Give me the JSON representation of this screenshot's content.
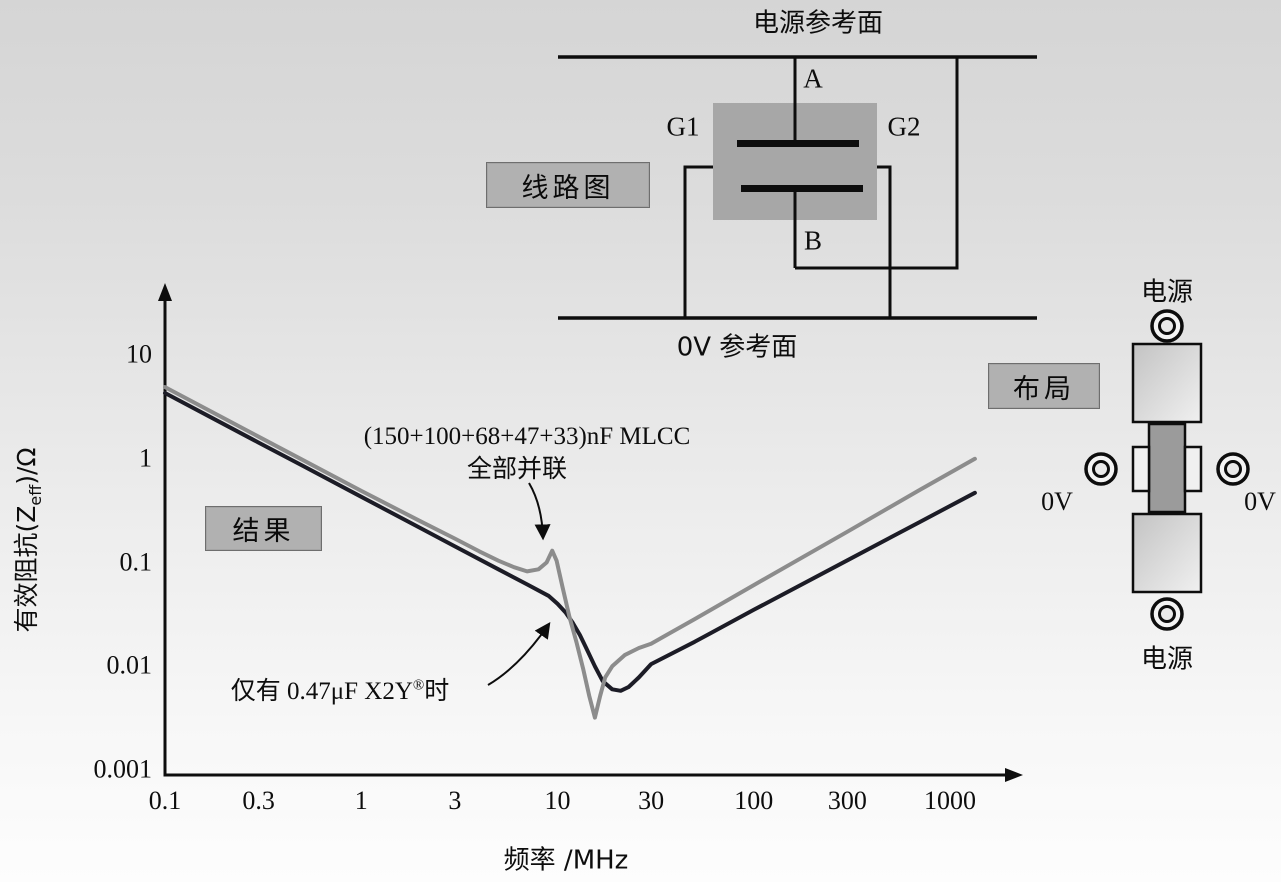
{
  "palette": {
    "line_color": "#0d0d0d",
    "box_fill": "#b1b1b1",
    "box_border": "#6e6e6e",
    "capacitor_body_fill": "#a7a7a7",
    "component_body_fill": "#9b9b9b",
    "curve_mlcc_color": "#8c8c8c",
    "curve_x2y_color": "#1c1c26"
  },
  "circuit_diagram": {
    "title_box": "线路图",
    "power_plane_label": "电源参考面",
    "ground_plane_label": "0V 参考面",
    "terminals": {
      "a": "A",
      "b": "B",
      "g1": "G1",
      "g2": "G2"
    }
  },
  "layout_panel": {
    "title_box": "布局",
    "power_label_top": "电源",
    "power_label_bottom": "电源",
    "ground_label_left": "0V",
    "ground_label_right": "0V"
  },
  "chart_data": {
    "type": "line",
    "results_box": "结果",
    "grid": false,
    "legend_position": "none",
    "x_axis": {
      "label": "频率 /MHz",
      "scale": "log",
      "range": [
        0.1,
        1000
      ],
      "ticks": [
        0.1,
        0.3,
        1,
        3,
        10,
        30,
        100,
        300,
        1000
      ],
      "tick_labels": [
        "0.1",
        "0.3",
        "1",
        "3",
        "10",
        "30",
        "100",
        "300",
        "1000"
      ]
    },
    "y_axis": {
      "label": "有效阻抗(Zeff)/Ω",
      "label_parts": [
        "有效阻抗(Z",
        "eff",
        ")/Ω"
      ],
      "scale": "log",
      "range": [
        0.001,
        10
      ],
      "ticks": [
        10,
        1,
        0.1,
        0.01,
        0.001
      ],
      "tick_labels": [
        "10",
        "1",
        "0.1",
        "0.01",
        "0.001"
      ]
    },
    "annotations": {
      "mlcc": {
        "line1": "(150+100+68+47+33)nF MLCC",
        "line2": "全部并联"
      },
      "x2y": {
        "parts": [
          "仅有 0.47μF X2Y",
          "®",
          "时"
        ]
      }
    },
    "series": [
      {
        "id": "x2y-only",
        "name": "仅有 0.47μF X2Y® 时",
        "color": "#1c1c26",
        "points": [
          [
            0.1,
            4.3
          ],
          [
            0.2,
            2.15
          ],
          [
            0.3,
            1.43
          ],
          [
            0.5,
            0.86
          ],
          [
            1,
            0.43
          ],
          [
            2,
            0.215
          ],
          [
            3,
            0.143
          ],
          [
            5,
            0.086
          ],
          [
            7,
            0.0615
          ],
          [
            9,
            0.0478
          ],
          [
            10,
            0.04
          ],
          [
            11,
            0.033
          ],
          [
            12,
            0.026
          ],
          [
            13,
            0.02
          ],
          [
            14,
            0.015
          ],
          [
            15.5,
            0.01
          ],
          [
            17,
            0.0072
          ],
          [
            19,
            0.006
          ],
          [
            21,
            0.0058
          ],
          [
            23,
            0.0063
          ],
          [
            26,
            0.0078
          ],
          [
            30,
            0.0105
          ],
          [
            50,
            0.0172
          ],
          [
            100,
            0.035
          ],
          [
            300,
            0.105
          ],
          [
            700,
            0.245
          ],
          [
            1340,
            0.47
          ]
        ]
      },
      {
        "id": "mlcc-parallel",
        "name": "(150+100+68+47+33)nF MLCC 全部并联",
        "color": "#8c8c8c",
        "points": [
          [
            0.1,
            4.9
          ],
          [
            0.2,
            2.45
          ],
          [
            0.3,
            1.63
          ],
          [
            0.5,
            0.98
          ],
          [
            1,
            0.49
          ],
          [
            2,
            0.25
          ],
          [
            3,
            0.17
          ],
          [
            4,
            0.128
          ],
          [
            5,
            0.104
          ],
          [
            6,
            0.09
          ],
          [
            7,
            0.082
          ],
          [
            8,
            0.086
          ],
          [
            8.8,
            0.1
          ],
          [
            9.4,
            0.13
          ],
          [
            9.9,
            0.104
          ],
          [
            10.6,
            0.058
          ],
          [
            11.5,
            0.03
          ],
          [
            12.5,
            0.017
          ],
          [
            13.5,
            0.0095
          ],
          [
            14.5,
            0.0052
          ],
          [
            15.5,
            0.0032
          ],
          [
            16.5,
            0.0052
          ],
          [
            17.5,
            0.0078
          ],
          [
            19,
            0.01
          ],
          [
            22,
            0.0128
          ],
          [
            26,
            0.015
          ],
          [
            30,
            0.0165
          ],
          [
            50,
            0.0285
          ],
          [
            100,
            0.0605
          ],
          [
            300,
            0.198
          ],
          [
            700,
            0.5
          ],
          [
            1340,
            1.0
          ]
        ]
      }
    ]
  }
}
